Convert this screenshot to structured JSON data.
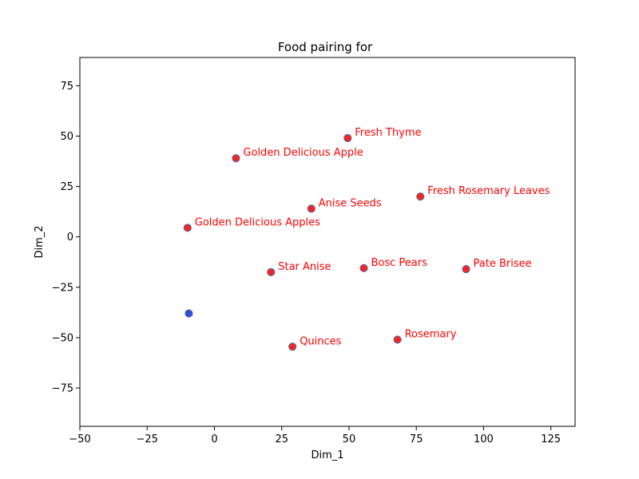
{
  "chart_data": {
    "type": "scatter",
    "title": "Food pairing for",
    "xlabel": "Dim_1",
    "ylabel": "Dim_2",
    "xlim": [
      -50,
      134
    ],
    "ylim": [
      -94,
      89
    ],
    "xticks": [
      -50,
      -25,
      0,
      25,
      50,
      75,
      100,
      125
    ],
    "yticks": [
      -75,
      -50,
      -25,
      0,
      25,
      50,
      75
    ],
    "grid": false,
    "label_color": "#ff0000",
    "point_fill": "#ff2020",
    "point_edge": "#5b6b9a",
    "highlight_fill": "#2a4fe0",
    "points": [
      {
        "label": "Fresh Thyme",
        "x": 49.5,
        "y": 49
      },
      {
        "label": "Golden Delicious Apple",
        "x": 8,
        "y": 39
      },
      {
        "label": "Fresh Rosemary Leaves",
        "x": 76.5,
        "y": 20
      },
      {
        "label": "Anise Seeds",
        "x": 36,
        "y": 14
      },
      {
        "label": "Golden Delicious Apples",
        "x": -10,
        "y": 4.5
      },
      {
        "label": "Star Anise",
        "x": 21,
        "y": -17.5
      },
      {
        "label": "Bosc Pears",
        "x": 55.5,
        "y": -15.5
      },
      {
        "label": "Pate Brisee",
        "x": 93.5,
        "y": -16
      },
      {
        "label": "Quinces",
        "x": 29,
        "y": -54.5
      },
      {
        "label": "Rosemary",
        "x": 68,
        "y": -51
      },
      {
        "label": "",
        "x": -9.5,
        "y": -38,
        "highlight": true
      }
    ]
  }
}
